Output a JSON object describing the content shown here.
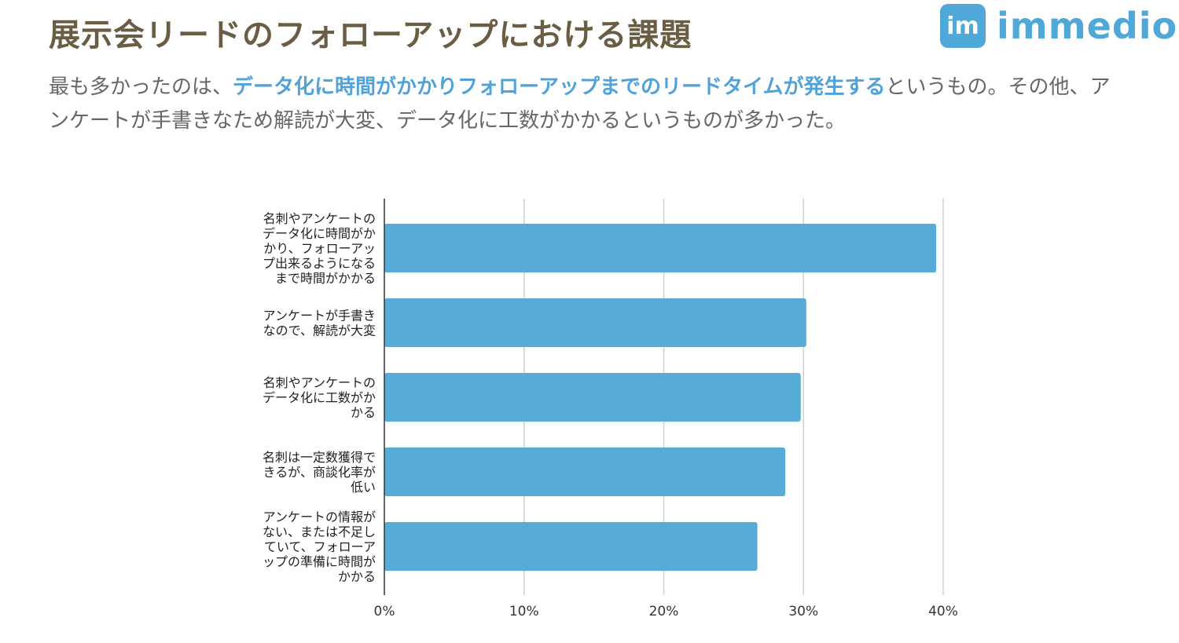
{
  "title": "展示会リードのフォローアップにおける課題",
  "logo": {
    "mark": "im",
    "text": "immedio",
    "color": "#4fa8d8"
  },
  "description": {
    "before": "最も多かったのは、",
    "highlight": "データ化に時間がかかりフォローアップまでのリードタイムが発生する",
    "after": "というもの。その他、アンケートが手書きなため解読が大変、データ化に工数がかかるというものが多かった。",
    "highlight_color": "#4fa3d9"
  },
  "chart_data": {
    "type": "bar",
    "orientation": "horizontal",
    "categories": [
      [
        "名刺やアンケートの",
        "データ化に時間がか",
        "かり、フォローアッ",
        "プ出来るようになる",
        "まで時間がかかる"
      ],
      [
        "アンケートが手書き",
        "なので、解読が大変"
      ],
      [
        "名刺やアンケートの",
        "データ化に工数がか",
        "かる"
      ],
      [
        "名刺は一定数獲得で",
        "きるが、商談化率が",
        "低い"
      ],
      [
        "アンケートの情報が",
        "ない、または不足し",
        "ていて、フォローア",
        "ップの準備に時間が",
        "かかる"
      ]
    ],
    "values": [
      39.5,
      30.2,
      29.8,
      28.7,
      26.7
    ],
    "unit": "%",
    "xlim": [
      0,
      40
    ],
    "xticks": [
      "0%",
      "10%",
      "20%",
      "30%",
      "40%"
    ],
    "grid": true,
    "bar_color": "#56acd6"
  }
}
